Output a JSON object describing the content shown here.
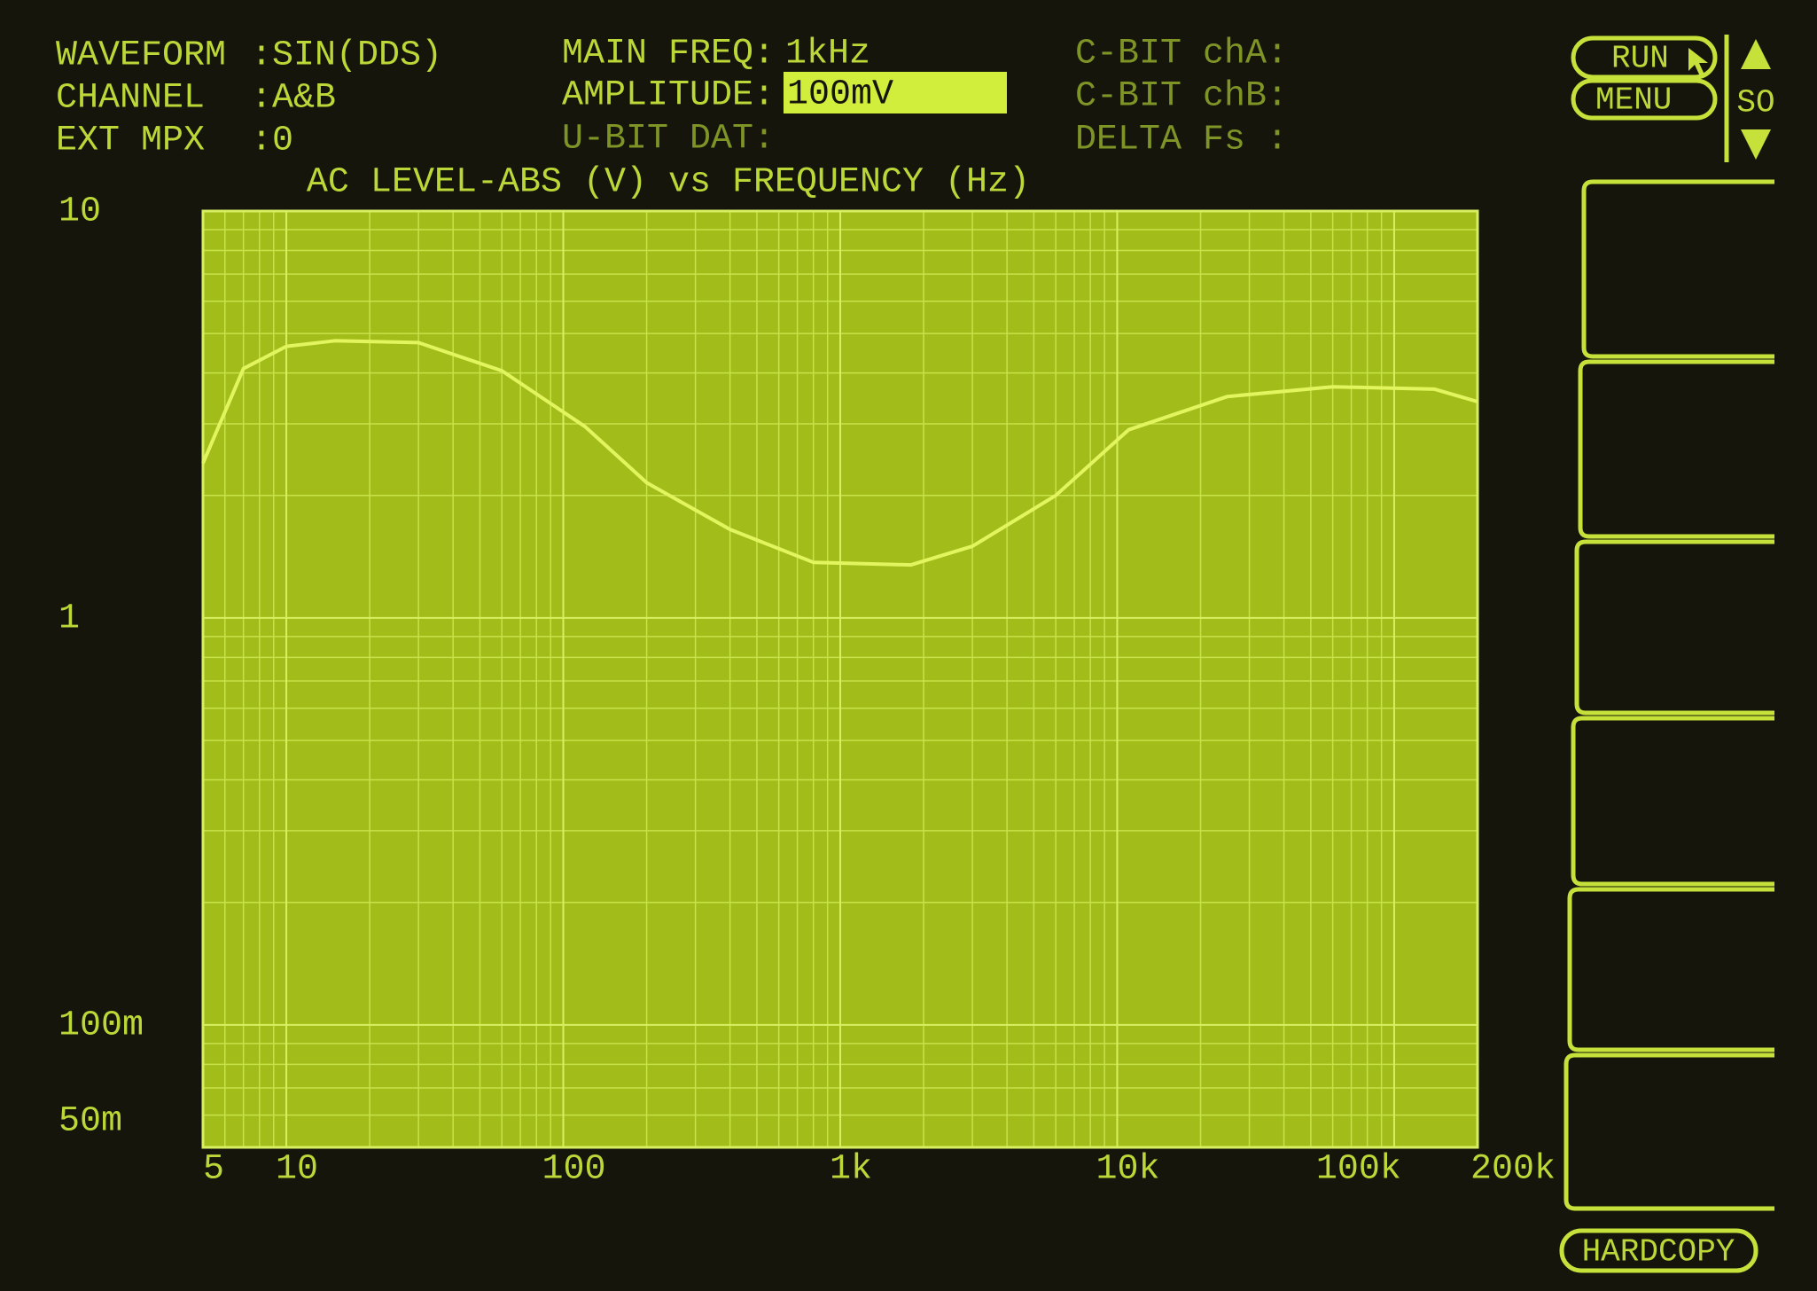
{
  "status": [
    {
      "label": "WAVEFORM",
      "value": ":SIN(DDS)"
    },
    {
      "label": "CHANNEL",
      "value": ":A&B"
    },
    {
      "label": "EXT MPX",
      "value": ":0"
    },
    {
      "label": "MAIN FREQ:",
      "value": "1kHz"
    },
    {
      "label": "AMPLITUDE:",
      "value": "100mV"
    },
    {
      "label": "U-BIT DAT:"
    },
    {
      "label": "C-BIT chA:"
    },
    {
      "label": "C-BIT chB:"
    },
    {
      "label": "DELTA Fs :"
    }
  ],
  "buttons": {
    "run": "RUN",
    "menu": "MENU",
    "scroll": "SO",
    "hardcopy": "HARDCOPY"
  },
  "chart_data": {
    "type": "line",
    "title": "AC LEVEL-ABS (V) vs FREQUENCY (Hz)",
    "x": [
      5,
      7,
      10,
      15,
      30,
      60,
      120,
      200,
      400,
      800,
      1800,
      3000,
      6000,
      11000,
      25000,
      60000,
      140000,
      200000
    ],
    "values": [
      2.4,
      4.1,
      4.65,
      4.8,
      4.75,
      4.05,
      2.95,
      2.15,
      1.65,
      1.37,
      1.35,
      1.5,
      2.0,
      2.9,
      3.5,
      3.7,
      3.65,
      3.4
    ],
    "color": "#e2f55e",
    "xscale": "log",
    "yscale": "log",
    "xlim": [
      5,
      200000
    ],
    "ylim": [
      0.05,
      10
    ],
    "xticks": [
      5,
      10,
      100,
      {
        "value": 1000,
        "label": "1k"
      },
      {
        "value": 10000,
        "label": "10k"
      },
      {
        "value": 100000,
        "label": "100k"
      },
      {
        "value": 200000,
        "label": "200k"
      }
    ],
    "yticks": [
      10,
      1,
      {
        "value": 0.1,
        "label": "100m"
      },
      {
        "value": 0.05,
        "label": "50m"
      }
    ],
    "grid": true,
    "minor_grid": true
  }
}
